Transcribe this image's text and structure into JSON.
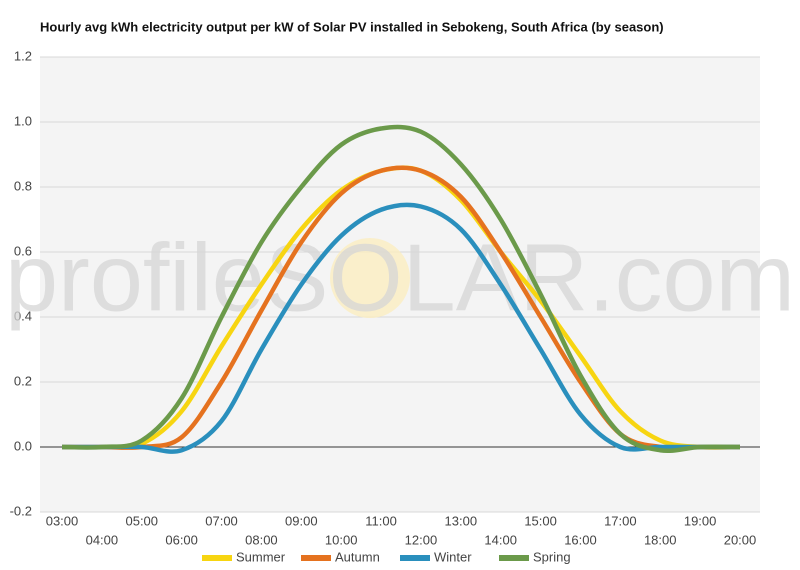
{
  "chart_data": {
    "type": "line",
    "title": "Hourly avg kWh electricity output per kW of Solar PV installed in Sebokeng, South Africa (by season)",
    "watermark": "profileSOLAR.com",
    "categories": [
      "03:00",
      "04:00",
      "05:00",
      "06:00",
      "07:00",
      "08:00",
      "09:00",
      "10:00",
      "11:00",
      "12:00",
      "13:00",
      "14:00",
      "15:00",
      "16:00",
      "17:00",
      "18:00",
      "19:00",
      "20:00"
    ],
    "series": [
      {
        "name": "Summer",
        "color": "#f7d511",
        "values": [
          0,
          0,
          0.01,
          0.11,
          0.31,
          0.5,
          0.67,
          0.79,
          0.85,
          0.85,
          0.76,
          0.6,
          0.45,
          0.28,
          0.11,
          0.02,
          0,
          0
        ]
      },
      {
        "name": "Autumn",
        "color": "#e5721f",
        "values": [
          0,
          0,
          0,
          0.03,
          0.2,
          0.42,
          0.63,
          0.78,
          0.85,
          0.85,
          0.77,
          0.6,
          0.4,
          0.2,
          0.04,
          0,
          0,
          0
        ]
      },
      {
        "name": "Winter",
        "color": "#2a8fbd",
        "values": [
          0,
          0,
          0,
          -0.01,
          0.08,
          0.3,
          0.5,
          0.65,
          0.73,
          0.74,
          0.67,
          0.5,
          0.3,
          0.1,
          0,
          0,
          0,
          0
        ]
      },
      {
        "name": "Spring",
        "color": "#6b9a4a",
        "values": [
          0,
          0,
          0.02,
          0.15,
          0.4,
          0.63,
          0.8,
          0.93,
          0.98,
          0.97,
          0.87,
          0.7,
          0.47,
          0.22,
          0.04,
          -0.01,
          0,
          0
        ]
      }
    ],
    "ylim": [
      -0.2,
      1.2
    ],
    "yticks": [
      -0.2,
      {
        "value": 0,
        "label": "0.0"
      },
      0.2,
      0.4,
      0.6,
      0.8,
      {
        "value": 1,
        "label": "1.0"
      },
      1.2
    ],
    "grid": true,
    "legend": "bottom"
  }
}
